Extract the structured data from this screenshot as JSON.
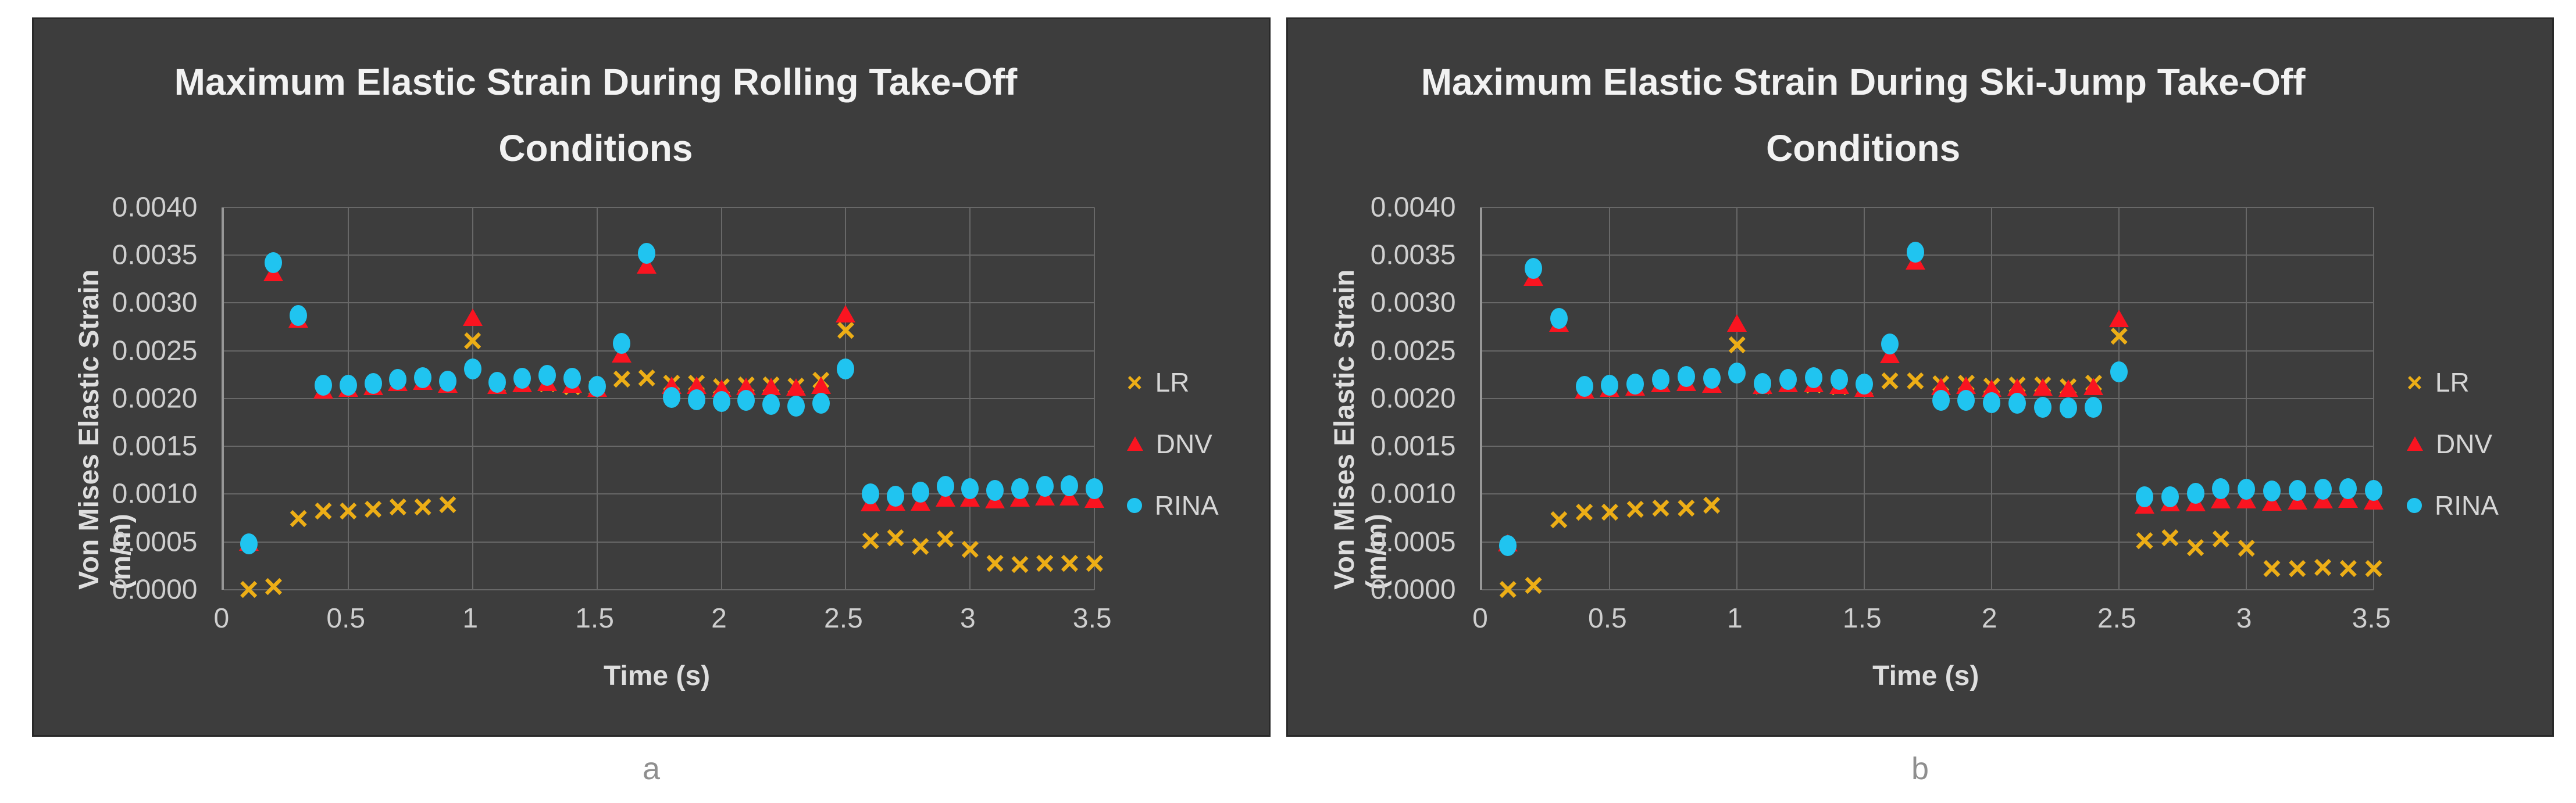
{
  "page": {
    "background": "#FFFFFF",
    "captions": [
      "a",
      "b"
    ]
  },
  "colors": {
    "panel_bg": "#3D3D3D",
    "gridline": "#686868",
    "axis_line": "#989898",
    "title_text": "#F2F2F2",
    "tick_text": "#CFCFCF",
    "caption_text": "#8F8F8F",
    "lr": "#EDAE16",
    "dnv": "#FA1420",
    "rina": "#20C4F0"
  },
  "chart_data": [
    {
      "type": "scatter",
      "title": "Maximum Elastic Strain During Rolling Take-Off Conditions",
      "title_lines": [
        "Maximum Elastic Strain During Rolling Take-Off",
        "Conditions"
      ],
      "xlabel": "Time (s)",
      "ylabel": "Von Mises Elastic Strain (m/m)",
      "xlim": [
        0,
        3.5
      ],
      "ylim": [
        0,
        0.004
      ],
      "grid": true,
      "legend_position": "right",
      "x_ticks": {
        "values": [
          0,
          0.5,
          1,
          1.5,
          2,
          2.5,
          3,
          3.5
        ],
        "labels": [
          "0",
          "0.5",
          "1",
          "1.5",
          "2",
          "2.5",
          "3",
          "3.5"
        ]
      },
      "y_ticks": {
        "values": [
          0,
          0.0005,
          0.001,
          0.0015,
          0.002,
          0.0025,
          0.003,
          0.0035,
          0.004
        ],
        "labels": [
          "0.0000",
          "0.0005",
          "0.0010",
          "0.0015",
          "0.0020",
          "0.0025",
          "0.0030",
          "0.0035",
          "0.0040"
        ]
      },
      "x": [
        0.1,
        0.2,
        0.3,
        0.4,
        0.5,
        0.6,
        0.7,
        0.8,
        0.9,
        1.0,
        1.1,
        1.2,
        1.3,
        1.4,
        1.5,
        1.6,
        1.7,
        1.8,
        1.9,
        2.0,
        2.1,
        2.2,
        2.3,
        2.4,
        2.5,
        2.6,
        2.7,
        2.8,
        2.9,
        3.0,
        3.1,
        3.2,
        3.3,
        3.4,
        3.5
      ],
      "series": [
        {
          "name": "LR",
          "marker": "x",
          "color": "#EDAE16",
          "values": [
            0.0,
            3e-05,
            0.00074,
            0.00082,
            0.00082,
            0.00084,
            0.00086,
            0.00086,
            0.00089,
            0.0026,
            0.00214,
            0.00215,
            0.00215,
            0.00212,
            0.00211,
            0.0022,
            0.00221,
            0.00216,
            0.00216,
            0.00212,
            0.00214,
            0.00214,
            0.00213,
            0.00219,
            0.00271,
            0.00051,
            0.00054,
            0.00045,
            0.00053,
            0.00042,
            0.00027,
            0.00026,
            0.00027,
            0.00027,
            0.00027
          ]
        },
        {
          "name": "DNV",
          "marker": "triangle",
          "color": "#FA1420",
          "values": [
            0.0005,
            0.00332,
            0.00283,
            0.00209,
            0.00211,
            0.00213,
            0.00217,
            0.00218,
            0.00215,
            0.00285,
            0.00214,
            0.00216,
            0.00217,
            0.00215,
            0.00211,
            0.00247,
            0.0034,
            0.00214,
            0.00214,
            0.00211,
            0.00213,
            0.00213,
            0.00212,
            0.00214,
            0.00289,
            0.00091,
            0.00092,
            0.00092,
            0.00096,
            0.00096,
            0.00094,
            0.00096,
            0.00097,
            0.00097,
            0.00095
          ]
        },
        {
          "name": "RINA",
          "marker": "circle",
          "color": "#20C4F0",
          "values": [
            0.00048,
            0.00342,
            0.00287,
            0.00214,
            0.00214,
            0.00216,
            0.0022,
            0.00222,
            0.00218,
            0.00231,
            0.00217,
            0.00221,
            0.00224,
            0.00221,
            0.00213,
            0.00258,
            0.00352,
            0.00201,
            0.00199,
            0.00197,
            0.00198,
            0.00194,
            0.00192,
            0.00195,
            0.00231,
            0.001,
            0.00098,
            0.00102,
            0.00108,
            0.00106,
            0.00104,
            0.00106,
            0.00108,
            0.00109,
            0.00106
          ]
        }
      ]
    },
    {
      "type": "scatter",
      "title": "Maximum Elastic Strain During Ski-Jump Take-Off Conditions",
      "title_lines": [
        "Maximum Elastic Strain During Ski-Jump Take-Off",
        "Conditions"
      ],
      "xlabel": "Time (s)",
      "ylabel": "Von Mises Elastic Strain (m/m)",
      "xlim": [
        0,
        3.5
      ],
      "ylim": [
        0,
        0.004
      ],
      "grid": true,
      "legend_position": "right",
      "x_ticks": {
        "values": [
          0,
          0.5,
          1,
          1.5,
          2,
          2.5,
          3,
          3.5
        ],
        "labels": [
          "0",
          "0.5",
          "1",
          "1.5",
          "2",
          "2.5",
          "3",
          "3.5"
        ]
      },
      "y_ticks": {
        "values": [
          0,
          0.0005,
          0.001,
          0.0015,
          0.002,
          0.0025,
          0.003,
          0.0035,
          0.004
        ],
        "labels": [
          "0.0000",
          "0.0005",
          "0.0010",
          "0.0015",
          "0.0020",
          "0.0025",
          "0.0030",
          "0.0035",
          "0.0040"
        ]
      },
      "x": [
        0.1,
        0.2,
        0.3,
        0.4,
        0.5,
        0.6,
        0.7,
        0.8,
        0.9,
        1.0,
        1.1,
        1.2,
        1.3,
        1.4,
        1.5,
        1.6,
        1.7,
        1.8,
        1.9,
        2.0,
        2.1,
        2.2,
        2.3,
        2.4,
        2.5,
        2.6,
        2.7,
        2.8,
        2.9,
        3.0,
        3.1,
        3.2,
        3.3,
        3.4,
        3.5
      ],
      "series": [
        {
          "name": "LR",
          "marker": "x",
          "color": "#EDAE16",
          "values": [
            0.0,
            4e-05,
            0.00073,
            0.00081,
            0.00081,
            0.00084,
            0.00085,
            0.00085,
            0.00088,
            0.00256,
            0.00213,
            0.00215,
            0.00214,
            0.00212,
            0.00211,
            0.00218,
            0.00218,
            0.00215,
            0.00216,
            0.00213,
            0.00214,
            0.00214,
            0.00212,
            0.00216,
            0.00265,
            0.00051,
            0.00054,
            0.00044,
            0.00053,
            0.00043,
            0.00022,
            0.00022,
            0.00023,
            0.00022,
            0.00022
          ]
        },
        {
          "name": "DNV",
          "marker": "triangle",
          "color": "#FA1420",
          "values": [
            0.00049,
            0.00327,
            0.00279,
            0.00209,
            0.00211,
            0.00212,
            0.00216,
            0.00217,
            0.00215,
            0.00279,
            0.00214,
            0.00216,
            0.00216,
            0.00214,
            0.00211,
            0.00246,
            0.00344,
            0.00213,
            0.00214,
            0.00211,
            0.00212,
            0.00212,
            0.00211,
            0.00213,
            0.00284,
            0.00089,
            0.00091,
            0.00091,
            0.00094,
            0.00094,
            0.00092,
            0.00093,
            0.00094,
            0.00095,
            0.00093
          ]
        },
        {
          "name": "RINA",
          "marker": "circle",
          "color": "#20C4F0",
          "values": [
            0.00046,
            0.00336,
            0.00284,
            0.00213,
            0.00214,
            0.00215,
            0.0022,
            0.00223,
            0.00221,
            0.00227,
            0.00216,
            0.0022,
            0.00222,
            0.0022,
            0.00215,
            0.00257,
            0.00353,
            0.00198,
            0.00198,
            0.00196,
            0.00195,
            0.00191,
            0.0019,
            0.00191,
            0.00228,
            0.00097,
            0.00097,
            0.00101,
            0.00106,
            0.00105,
            0.00103,
            0.00104,
            0.00105,
            0.00106,
            0.00104
          ]
        }
      ]
    }
  ]
}
